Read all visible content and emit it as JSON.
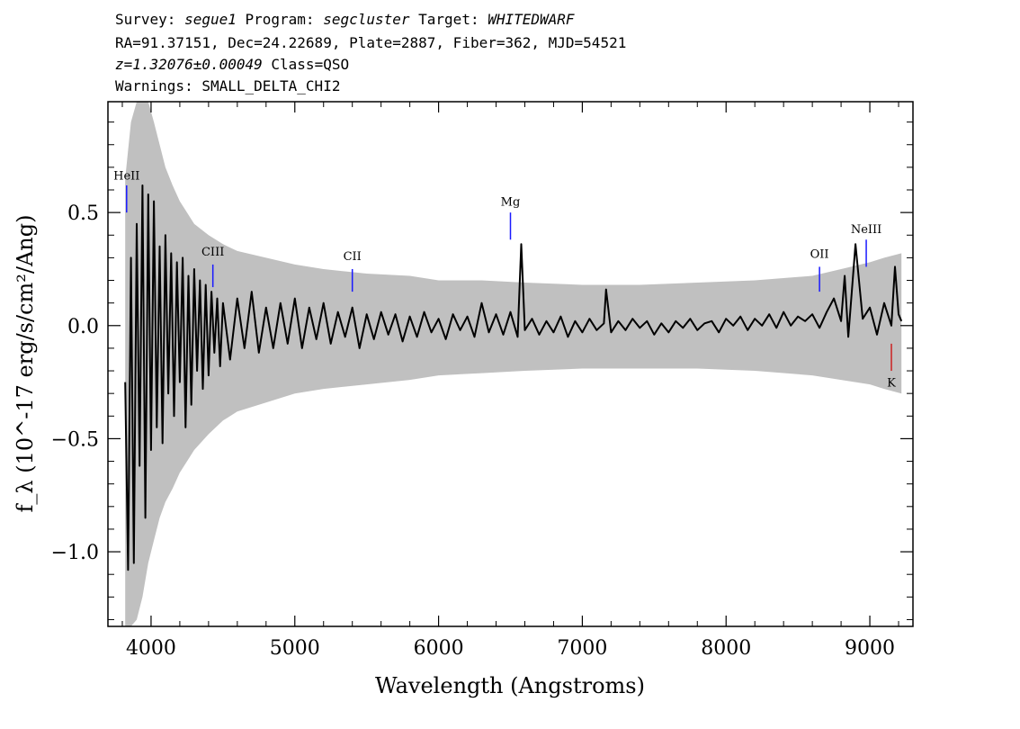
{
  "header": {
    "line1": {
      "survey_label": "Survey: ",
      "survey": "segue1",
      "program_label": " Program: ",
      "program": "segcluster",
      "target_label": " Target: ",
      "target": "WHITEDWARF"
    },
    "line2": "RA=91.37151, Dec=24.22689, Plate=2887, Fiber=362, MJD=54521",
    "line3": {
      "z": "z=1.32076±0.00049",
      "class": " Class=QSO"
    },
    "line4": "Warnings: SMALL_DELTA_CHI2"
  },
  "colors": {
    "flux": "#000000",
    "error": "#c0c0c0",
    "line_marker": "#1a1aff",
    "absorption_marker": "#cc2222"
  },
  "chart_data": {
    "type": "line",
    "title": "",
    "xlabel": "Wavelength (Angstroms)",
    "ylabel": "f_λ (10^-17 erg/s/cm²/Ang)",
    "xlim": [
      3700,
      9300
    ],
    "ylim": [
      -1.33,
      0.99
    ],
    "x_ticks": [
      4000,
      5000,
      6000,
      7000,
      8000,
      9000
    ],
    "x_tick_labels": [
      "4000",
      "5000",
      "6000",
      "7000",
      "8000",
      "9000"
    ],
    "y_ticks": [
      -1.0,
      -0.5,
      0.0,
      0.5
    ],
    "y_tick_labels": [
      "−1.0",
      "−0.5",
      "0.0",
      "0.5"
    ],
    "grid": false,
    "series": [
      {
        "role": "flux",
        "x": [
          3820,
          3840,
          3860,
          3880,
          3900,
          3920,
          3940,
          3960,
          3980,
          4000,
          4020,
          4040,
          4060,
          4080,
          4100,
          4120,
          4140,
          4160,
          4180,
          4200,
          4220,
          4240,
          4260,
          4280,
          4300,
          4320,
          4340,
          4360,
          4380,
          4400,
          4420,
          4440,
          4460,
          4480,
          4500,
          4550,
          4600,
          4650,
          4700,
          4750,
          4800,
          4850,
          4900,
          4950,
          5000,
          5050,
          5100,
          5150,
          5200,
          5250,
          5300,
          5350,
          5400,
          5450,
          5500,
          5550,
          5600,
          5650,
          5700,
          5750,
          5800,
          5850,
          5900,
          5950,
          6000,
          6050,
          6100,
          6150,
          6200,
          6250,
          6300,
          6350,
          6400,
          6450,
          6500,
          6550,
          6575,
          6600,
          6650,
          6700,
          6750,
          6800,
          6850,
          6900,
          6950,
          7000,
          7050,
          7100,
          7150,
          7165,
          7200,
          7250,
          7300,
          7350,
          7400,
          7450,
          7500,
          7550,
          7600,
          7650,
          7700,
          7750,
          7800,
          7850,
          7900,
          7950,
          8000,
          8050,
          8100,
          8150,
          8200,
          8250,
          8300,
          8350,
          8400,
          8450,
          8500,
          8550,
          8600,
          8650,
          8700,
          8750,
          8800,
          8825,
          8850,
          8900,
          8950,
          9000,
          9050,
          9100,
          9150,
          9175,
          9200,
          9220
        ],
        "y": [
          -0.25,
          -1.08,
          0.3,
          -1.05,
          0.45,
          -0.62,
          0.62,
          -0.85,
          0.58,
          -0.55,
          0.55,
          -0.45,
          0.35,
          -0.52,
          0.4,
          -0.3,
          0.32,
          -0.4,
          0.28,
          -0.25,
          0.3,
          -0.45,
          0.22,
          -0.35,
          0.25,
          -0.2,
          0.2,
          -0.28,
          0.18,
          -0.22,
          0.15,
          -0.12,
          0.12,
          -0.18,
          0.1,
          -0.15,
          0.12,
          -0.1,
          0.15,
          -0.12,
          0.08,
          -0.1,
          0.1,
          -0.08,
          0.12,
          -0.1,
          0.08,
          -0.06,
          0.1,
          -0.08,
          0.06,
          -0.05,
          0.08,
          -0.1,
          0.05,
          -0.06,
          0.06,
          -0.04,
          0.05,
          -0.07,
          0.04,
          -0.05,
          0.06,
          -0.03,
          0.03,
          -0.06,
          0.05,
          -0.02,
          0.04,
          -0.05,
          0.1,
          -0.03,
          0.05,
          -0.04,
          0.06,
          -0.05,
          0.36,
          -0.02,
          0.03,
          -0.04,
          0.02,
          -0.03,
          0.04,
          -0.05,
          0.02,
          -0.03,
          0.03,
          -0.02,
          0.01,
          0.16,
          -0.03,
          0.02,
          -0.02,
          0.03,
          -0.01,
          0.02,
          -0.04,
          0.01,
          -0.03,
          0.02,
          -0.01,
          0.03,
          -0.02,
          0.01,
          0.02,
          -0.03,
          0.03,
          0.0,
          0.04,
          -0.02,
          0.03,
          0.0,
          0.05,
          -0.01,
          0.06,
          0.0,
          0.04,
          0.02,
          0.05,
          -0.01,
          0.06,
          0.12,
          0.02,
          0.22,
          -0.05,
          0.36,
          0.03,
          0.08,
          -0.04,
          0.1,
          0.0,
          0.26,
          0.05,
          0.02
        ]
      },
      {
        "role": "error",
        "x": [
          3820,
          3860,
          3900,
          3940,
          3980,
          4020,
          4060,
          4100,
          4150,
          4200,
          4250,
          4300,
          4400,
          4500,
          4600,
          4800,
          5000,
          5200,
          5500,
          5800,
          6000,
          6300,
          6600,
          7000,
          7400,
          7800,
          8200,
          8600,
          8800,
          9000,
          9100,
          9220
        ],
        "y_hi": [
          0.65,
          0.9,
          0.99,
          0.99,
          0.99,
          0.9,
          0.8,
          0.7,
          0.62,
          0.55,
          0.5,
          0.45,
          0.4,
          0.36,
          0.33,
          0.3,
          0.27,
          0.25,
          0.23,
          0.22,
          0.2,
          0.2,
          0.19,
          0.18,
          0.18,
          0.19,
          0.2,
          0.22,
          0.25,
          0.28,
          0.3,
          0.32
        ],
        "y_lo": [
          -1.33,
          -1.33,
          -1.3,
          -1.2,
          -1.05,
          -0.95,
          -0.85,
          -0.78,
          -0.72,
          -0.65,
          -0.6,
          -0.55,
          -0.48,
          -0.42,
          -0.38,
          -0.34,
          -0.3,
          -0.28,
          -0.26,
          -0.24,
          -0.22,
          -0.21,
          -0.2,
          -0.19,
          -0.19,
          -0.19,
          -0.2,
          -0.22,
          -0.24,
          -0.26,
          -0.28,
          -0.3
        ]
      }
    ],
    "annotations": [
      {
        "label": "HeII",
        "x": 3830,
        "y0": 0.5,
        "y1": 0.62,
        "kind": "emission",
        "label_y": 0.645
      },
      {
        "label": "CIII",
        "x": 4430,
        "y0": 0.17,
        "y1": 0.27,
        "kind": "emission",
        "label_y": 0.31
      },
      {
        "label": "CII",
        "x": 5400,
        "y0": 0.15,
        "y1": 0.25,
        "kind": "emission",
        "label_y": 0.29
      },
      {
        "label": "Mg",
        "x": 6500,
        "y0": 0.38,
        "y1": 0.5,
        "kind": "emission",
        "label_y": 0.53
      },
      {
        "label": "OII",
        "x": 8650,
        "y0": 0.15,
        "y1": 0.26,
        "kind": "emission",
        "label_y": 0.3
      },
      {
        "label": "NeIII",
        "x": 8975,
        "y0": 0.26,
        "y1": 0.38,
        "kind": "emission",
        "label_y": 0.41
      },
      {
        "label": "K",
        "x": 9150,
        "y0": -0.2,
        "y1": -0.08,
        "kind": "absorption",
        "label_y": -0.27
      }
    ]
  }
}
